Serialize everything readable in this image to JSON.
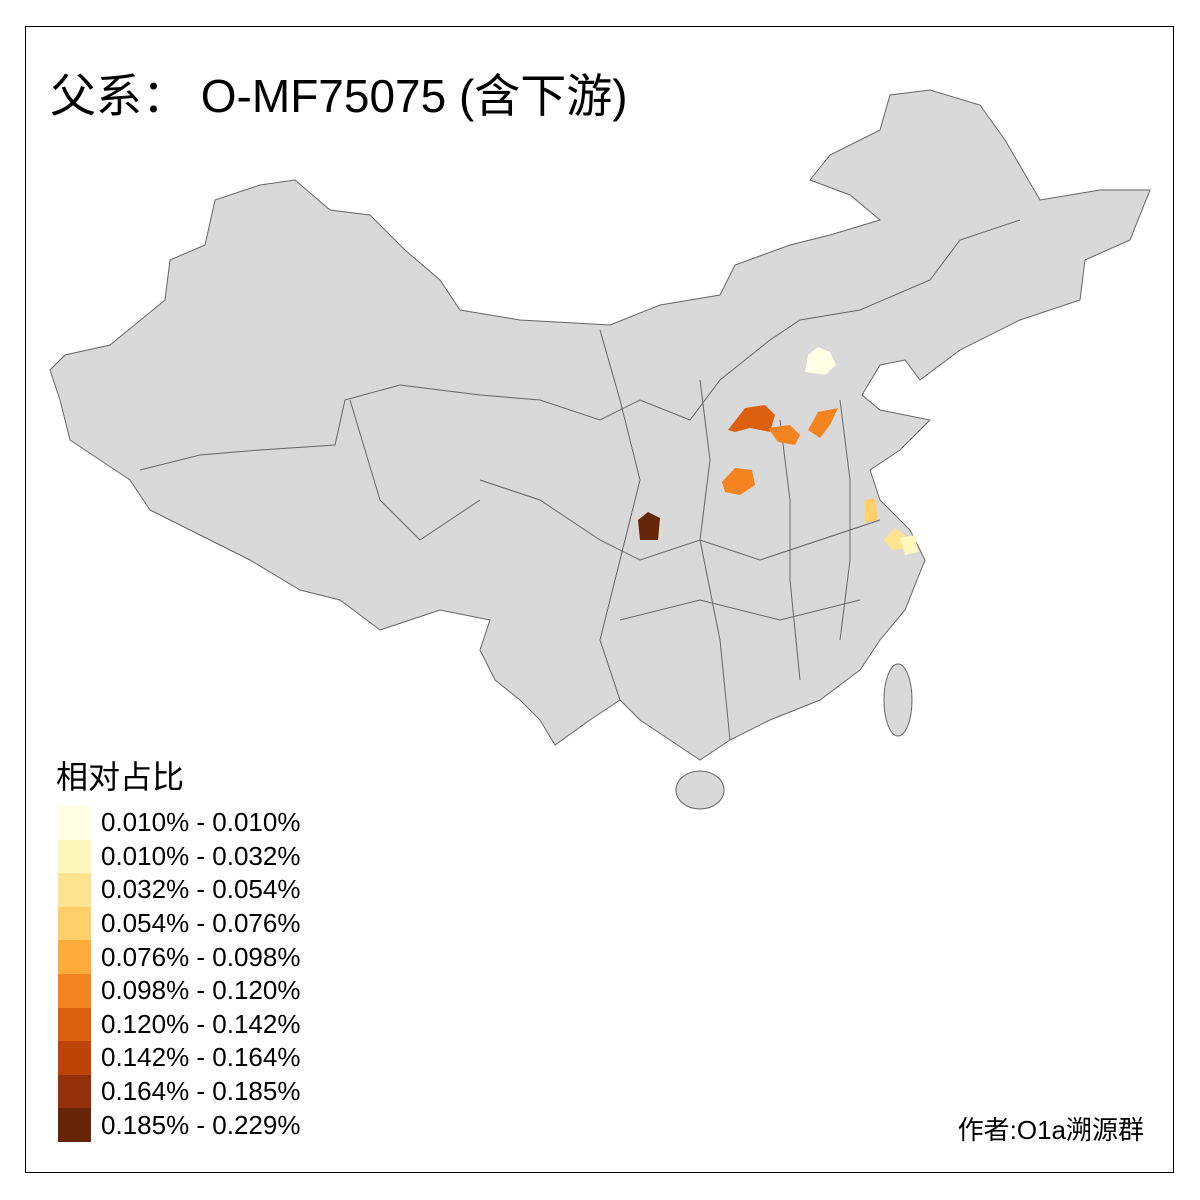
{
  "title": "父系： O-MF75075 (含下游)",
  "legend": {
    "title": "相对占比",
    "items": [
      {
        "label": "0.010% - 0.010%",
        "color": "#FFFFE5"
      },
      {
        "label": "0.010% - 0.032%",
        "color": "#FFF7BC"
      },
      {
        "label": "0.032% - 0.054%",
        "color": "#FEE391"
      },
      {
        "label": "0.054% - 0.076%",
        "color": "#FED06A"
      },
      {
        "label": "0.076% - 0.098%",
        "color": "#FEAB3A"
      },
      {
        "label": "0.098% - 0.120%",
        "color": "#F3841F"
      },
      {
        "label": "0.120% - 0.142%",
        "color": "#DD6010"
      },
      {
        "label": "0.142% - 0.164%",
        "color": "#BE4307"
      },
      {
        "label": "0.164% - 0.185%",
        "color": "#93300A"
      },
      {
        "label": "0.185% - 0.229%",
        "color": "#662506"
      }
    ]
  },
  "map": {
    "base_color": "#D9D9D9",
    "border_color": "#666666"
  },
  "credit": "作者:O1a溯源群"
}
